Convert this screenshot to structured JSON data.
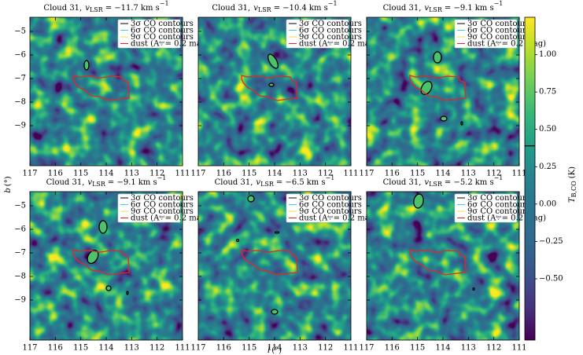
{
  "chart_data": [
    {
      "type": "map",
      "title": {
        "name": "Cloud 31,",
        "symbol": "v",
        "sub": "LSR",
        "value": "= −11.7",
        "unit": "km s",
        "sup": "−1"
      },
      "xlim": [
        117,
        111
      ],
      "ylim": [
        -4.4,
        -10.7
      ],
      "xticks": [
        117,
        116,
        115,
        114,
        113,
        112,
        111
      ],
      "yticks": [
        {
          "value": -5,
          "label": "−5"
        },
        {
          "value": -6,
          "label": "−6"
        },
        {
          "value": -7,
          "label": "−7"
        },
        {
          "value": -8,
          "label": "−8"
        },
        {
          "value": -9,
          "label": "−9"
        }
      ],
      "show_ytick_labels": true,
      "legend_loc": "upper right"
    },
    {
      "type": "map",
      "title": {
        "name": "Cloud 31,",
        "symbol": "v",
        "sub": "LSR",
        "value": "= −10.4",
        "unit": "km s",
        "sup": "−1"
      },
      "xlim": [
        117,
        111
      ],
      "ylim": [
        -4.4,
        -10.7
      ],
      "xticks": [
        117,
        116,
        115,
        114,
        113,
        112,
        111
      ],
      "yticks": [
        {
          "value": -5,
          "label": "−5"
        },
        {
          "value": -6,
          "label": "−6"
        },
        {
          "value": -7,
          "label": "−7"
        },
        {
          "value": -8,
          "label": "−8"
        },
        {
          "value": -9,
          "label": "−9"
        }
      ],
      "show_ytick_labels": false,
      "legend_loc": "upper right"
    },
    {
      "type": "map",
      "title": {
        "name": "Cloud 31,",
        "symbol": "v",
        "sub": "LSR",
        "value": "= −9.1",
        "unit": "km s",
        "sup": "−1"
      },
      "xlim": [
        117,
        111
      ],
      "ylim": [
        -4.4,
        -10.7
      ],
      "xticks": [
        117,
        116,
        115,
        114,
        113,
        112,
        111
      ],
      "yticks": [
        {
          "value": -5,
          "label": "−5"
        },
        {
          "value": -6,
          "label": "−6"
        },
        {
          "value": -7,
          "label": "−7"
        },
        {
          "value": -8,
          "label": "−8"
        },
        {
          "value": -9,
          "label": "−9"
        }
      ],
      "show_ytick_labels": false,
      "legend_loc": "upper right"
    },
    {
      "type": "map",
      "title": {
        "name": "Cloud 31,",
        "symbol": "v",
        "sub": "LSR",
        "value": "= −9.1",
        "unit": "km s",
        "sup": "−1"
      },
      "xlim": [
        117,
        111
      ],
      "ylim": [
        -4.4,
        -10.7
      ],
      "xticks": [
        117,
        116,
        115,
        114,
        113,
        112,
        111
      ],
      "yticks": [
        {
          "value": -5,
          "label": "−5"
        },
        {
          "value": -6,
          "label": "−6"
        },
        {
          "value": -7,
          "label": "−7"
        },
        {
          "value": -8,
          "label": "−8"
        },
        {
          "value": -9,
          "label": "−9"
        }
      ],
      "show_ytick_labels": true,
      "legend_loc": "upper right"
    },
    {
      "type": "map",
      "title": {
        "name": "Cloud 31,",
        "symbol": "v",
        "sub": "LSR",
        "value": "= −6.5",
        "unit": "km s",
        "sup": "−1"
      },
      "xlim": [
        117,
        111
      ],
      "ylim": [
        -4.4,
        -10.7
      ],
      "xticks": [
        117,
        116,
        115,
        114,
        113,
        112,
        111
      ],
      "yticks": [
        {
          "value": -5,
          "label": "−5"
        },
        {
          "value": -6,
          "label": "−6"
        },
        {
          "value": -7,
          "label": "−7"
        },
        {
          "value": -8,
          "label": "−8"
        },
        {
          "value": -9,
          "label": "−9"
        }
      ],
      "show_ytick_labels": false,
      "legend_loc": "upper right"
    },
    {
      "type": "map",
      "title": {
        "name": "Cloud 31,",
        "symbol": "v",
        "sub": "LSR",
        "value": "= −5.2",
        "unit": "km s",
        "sup": "−1"
      },
      "xlim": [
        117,
        111
      ],
      "ylim": [
        -4.4,
        -10.7
      ],
      "xticks": [
        117,
        116,
        115,
        114,
        113,
        112,
        111
      ],
      "yticks": [
        {
          "value": -5,
          "label": "−5"
        },
        {
          "value": -6,
          "label": "−6"
        },
        {
          "value": -7,
          "label": "−7"
        },
        {
          "value": -8,
          "label": "−8"
        },
        {
          "value": -9,
          "label": "−9"
        }
      ],
      "show_ytick_labels": false,
      "legend_loc": "upper right"
    }
  ],
  "figure": {
    "xlabel": {
      "symbol": "l",
      "unit": "(°)"
    },
    "ylabel": {
      "symbol": "b",
      "unit": "(°)"
    }
  },
  "legend": [
    {
      "text": "3σ CO contours",
      "color": "#000000"
    },
    {
      "text": "6σ CO contours",
      "color": "#3fd0f0"
    },
    {
      "text": "9σ CO contours",
      "color": "#f0e040"
    },
    {
      "text": "dust (A",
      "sup": "dust",
      "sub": "V",
      "rest": "= 0.2 mag)",
      "color": "#e8261e"
    }
  ],
  "colorbar": {
    "label": {
      "symbol": "T",
      "sub": "B,CO",
      "unit": "(K)"
    },
    "colormap": "viridis",
    "clim": [
      -0.91,
      1.25
    ],
    "level": 0.39,
    "ticks": [
      {
        "value": -0.5,
        "label": "−0.50"
      },
      {
        "value": -0.25,
        "label": "−0.25"
      },
      {
        "value": 0,
        "label": "0.00"
      },
      {
        "value": 0.25,
        "label": "0.25"
      },
      {
        "value": 0.5,
        "label": "0.50"
      },
      {
        "value": 0.75,
        "label": "0.75"
      },
      {
        "value": 1,
        "label": "1.00"
      }
    ]
  }
}
